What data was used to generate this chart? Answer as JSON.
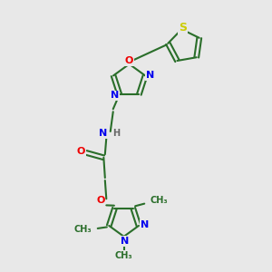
{
  "bg_color": "#e8e8e8",
  "bond_color": "#2a6e2a",
  "bond_width": 1.5,
  "atom_colors": {
    "N": "#0000ee",
    "O": "#ee0000",
    "S": "#cccc00",
    "H": "#666666",
    "C": "#2a6e2a"
  },
  "font_size_atom": 8,
  "font_size_methyl": 7,
  "xlim": [
    0,
    10
  ],
  "ylim": [
    0,
    10
  ]
}
